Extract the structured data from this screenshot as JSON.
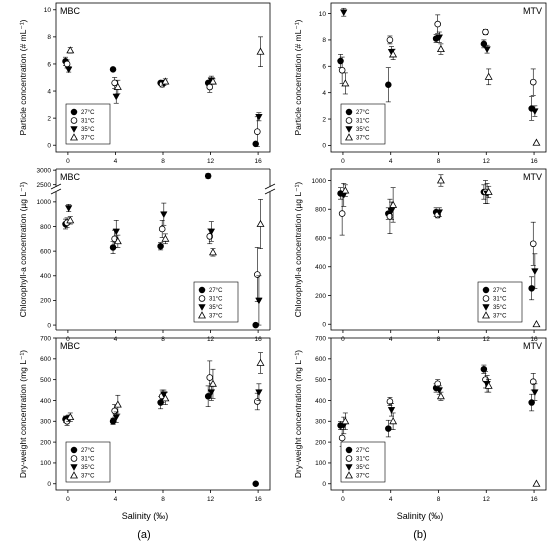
{
  "figure": {
    "xlabel": "Salinity (‰)",
    "sublabels": [
      "(a)",
      "(b)"
    ],
    "legend_entries": [
      "27°C",
      "31°C",
      "35°C",
      "37°C"
    ]
  },
  "chart_data": [
    {
      "type": "scatter",
      "panel": "a-top",
      "label": "MBC",
      "ylabel": "Particle concentration (# mL⁻¹)",
      "x_ticks": [
        0,
        4,
        8,
        12,
        16
      ],
      "y_ticks": [
        0,
        2,
        4,
        6,
        8,
        10
      ],
      "ylim": [
        -0.5,
        10.5
      ],
      "grid": false,
      "legend": "bottom-left",
      "series": [
        {
          "name": "27°C",
          "marker": "circle-filled",
          "points": [
            {
              "x": 0,
              "y": 6.2,
              "e": 0.3
            },
            {
              "x": 4,
              "y": 5.6,
              "e": 0
            },
            {
              "x": 8,
              "y": 4.6,
              "e": 0
            },
            {
              "x": 12,
              "y": 4.6,
              "e": 0
            },
            {
              "x": 16,
              "y": 0.1,
              "e": 0
            }
          ]
        },
        {
          "name": "31°C",
          "marker": "circle-open",
          "points": [
            {
              "x": 0,
              "y": 6.0,
              "e": 0.3
            },
            {
              "x": 4,
              "y": 4.6,
              "e": 0.4
            },
            {
              "x": 8,
              "y": 4.5,
              "e": 0.2
            },
            {
              "x": 12,
              "y": 4.3,
              "e": 0.4
            },
            {
              "x": 16,
              "y": 1.0,
              "e": 1.1
            }
          ]
        },
        {
          "name": "35°C",
          "marker": "tri-down-filled",
          "points": [
            {
              "x": 0,
              "y": 5.6,
              "e": 0.2
            },
            {
              "x": 4,
              "y": 3.6,
              "e": 0.5
            },
            {
              "x": 8,
              "y": 4.6,
              "e": 0.2
            },
            {
              "x": 12,
              "y": 4.8,
              "e": 0.3
            },
            {
              "x": 16,
              "y": 2.1,
              "e": 0.3
            }
          ]
        },
        {
          "name": "37°C",
          "marker": "tri-up-open",
          "points": [
            {
              "x": 0,
              "y": 7.0,
              "e": 0.2
            },
            {
              "x": 4,
              "y": 4.3,
              "e": 0.5
            },
            {
              "x": 8,
              "y": 4.7,
              "e": 0.2
            },
            {
              "x": 12,
              "y": 4.7,
              "e": 0.2
            },
            {
              "x": 16,
              "y": 6.9,
              "e": 1.1
            }
          ]
        }
      ]
    },
    {
      "type": "scatter",
      "panel": "a-mid",
      "label": "MBC",
      "ylabel": "Chlorophyll-a concentration (µg L⁻¹)",
      "x_ticks": [
        0,
        4,
        8,
        12,
        16
      ],
      "y_ticks_lower": [
        0,
        200,
        400,
        600,
        800,
        1000
      ],
      "y_ticks_upper": [
        2500,
        3000
      ],
      "ylim_lower": [
        -40,
        1080
      ],
      "ylim_upper": [
        2420,
        3040
      ],
      "broken_axis": true,
      "grid": false,
      "legend": "bottom-right",
      "series": [
        {
          "name": "27°C",
          "marker": "circle-filled",
          "points": [
            {
              "x": 0,
              "y": 820,
              "e": 40
            },
            {
              "x": 4,
              "y": 630,
              "e": 50
            },
            {
              "x": 8,
              "y": 640,
              "e": 30
            },
            {
              "x": 12,
              "y": 2800,
              "e": 80
            },
            {
              "x": 16,
              "y": 0,
              "e": 0
            }
          ]
        },
        {
          "name": "31°C",
          "marker": "circle-open",
          "points": [
            {
              "x": 0,
              "y": 830,
              "e": 40
            },
            {
              "x": 4,
              "y": 700,
              "e": 70
            },
            {
              "x": 8,
              "y": 780,
              "e": 70
            },
            {
              "x": 12,
              "y": 720,
              "e": 60
            },
            {
              "x": 16,
              "y": 410,
              "e": 220
            }
          ]
        },
        {
          "name": "35°C",
          "marker": "tri-down-filled",
          "points": [
            {
              "x": 0,
              "y": 950,
              "e": 30
            },
            {
              "x": 4,
              "y": 760,
              "e": 90
            },
            {
              "x": 8,
              "y": 900,
              "e": 90
            },
            {
              "x": 12,
              "y": 760,
              "e": 80
            },
            {
              "x": 16,
              "y": 200,
              "e": 200
            }
          ]
        },
        {
          "name": "37°C",
          "marker": "tri-up-open",
          "points": [
            {
              "x": 0,
              "y": 850,
              "e": 30
            },
            {
              "x": 4,
              "y": 680,
              "e": 50
            },
            {
              "x": 8,
              "y": 700,
              "e": 40
            },
            {
              "x": 12,
              "y": 590,
              "e": 30
            },
            {
              "x": 16,
              "y": 820,
              "e": 200
            }
          ]
        }
      ]
    },
    {
      "type": "scatter",
      "panel": "a-bot",
      "label": "MBC",
      "ylabel": "Dry-weight concentration (mg L⁻¹)",
      "x_ticks": [
        0,
        4,
        8,
        12,
        16
      ],
      "y_ticks": [
        0,
        100,
        200,
        300,
        400,
        500,
        600,
        700
      ],
      "ylim": [
        -30,
        700
      ],
      "grid": false,
      "legend": "bottom-left",
      "series": [
        {
          "name": "27°C",
          "marker": "circle-filled",
          "points": [
            {
              "x": 0,
              "y": 310,
              "e": 15
            },
            {
              "x": 4,
              "y": 300,
              "e": 15
            },
            {
              "x": 8,
              "y": 390,
              "e": 30
            },
            {
              "x": 12,
              "y": 420,
              "e": 50
            },
            {
              "x": 16,
              "y": 0,
              "e": 0
            }
          ]
        },
        {
          "name": "31°C",
          "marker": "circle-open",
          "points": [
            {
              "x": 0,
              "y": 300,
              "e": 20
            },
            {
              "x": 4,
              "y": 350,
              "e": 30
            },
            {
              "x": 8,
              "y": 420,
              "e": 30
            },
            {
              "x": 12,
              "y": 510,
              "e": 80
            },
            {
              "x": 16,
              "y": 395,
              "e": 40
            }
          ]
        },
        {
          "name": "35°C",
          "marker": "tri-down-filled",
          "points": [
            {
              "x": 0,
              "y": 315,
              "e": 15
            },
            {
              "x": 4,
              "y": 320,
              "e": 25
            },
            {
              "x": 8,
              "y": 430,
              "e": 20
            },
            {
              "x": 12,
              "y": 440,
              "e": 40
            },
            {
              "x": 16,
              "y": 440,
              "e": 40
            }
          ]
        },
        {
          "name": "37°C",
          "marker": "tri-up-open",
          "points": [
            {
              "x": 0,
              "y": 320,
              "e": 20
            },
            {
              "x": 4,
              "y": 380,
              "e": 45
            },
            {
              "x": 8,
              "y": 410,
              "e": 30
            },
            {
              "x": 12,
              "y": 480,
              "e": 70
            },
            {
              "x": 16,
              "y": 580,
              "e": 50
            }
          ]
        }
      ]
    },
    {
      "type": "scatter",
      "panel": "b-top",
      "label": "MTV",
      "ylabel": "Particle concentration (# mL⁻¹)",
      "x_ticks": [
        0,
        4,
        8,
        12,
        16
      ],
      "y_ticks": [
        0,
        2,
        4,
        6,
        8,
        10
      ],
      "ylim": [
        -0.5,
        10.8
      ],
      "grid": false,
      "legend": "bottom-left",
      "series": [
        {
          "name": "27°C",
          "marker": "circle-filled",
          "points": [
            {
              "x": 0,
              "y": 6.4,
              "e": 0.5
            },
            {
              "x": 4,
              "y": 4.6,
              "e": 1.3
            },
            {
              "x": 8,
              "y": 8.1,
              "e": 0.3
            },
            {
              "x": 12,
              "y": 7.7,
              "e": 0.3
            },
            {
              "x": 16,
              "y": 2.8,
              "e": 0.9
            }
          ]
        },
        {
          "name": "31°C",
          "marker": "circle-open",
          "points": [
            {
              "x": 0,
              "y": 5.7,
              "e": 1.0
            },
            {
              "x": 4,
              "y": 8.0,
              "e": 0.3
            },
            {
              "x": 8,
              "y": 9.2,
              "e": 0.7
            },
            {
              "x": 12,
              "y": 8.6,
              "e": 0.2
            },
            {
              "x": 16,
              "y": 4.8,
              "e": 1.0
            }
          ]
        },
        {
          "name": "35°C",
          "marker": "tri-down-filled",
          "points": [
            {
              "x": 0,
              "y": 10.1,
              "e": 0.3
            },
            {
              "x": 4,
              "y": 7.1,
              "e": 0.4
            },
            {
              "x": 8,
              "y": 8.2,
              "e": 0.4
            },
            {
              "x": 12,
              "y": 7.3,
              "e": 0.3
            },
            {
              "x": 16,
              "y": 2.6,
              "e": 0.4
            }
          ]
        },
        {
          "name": "37°C",
          "marker": "tri-up-open",
          "points": [
            {
              "x": 0,
              "y": 4.7,
              "e": 0.8
            },
            {
              "x": 4,
              "y": 6.9,
              "e": 0.4
            },
            {
              "x": 8,
              "y": 7.3,
              "e": 0.4
            },
            {
              "x": 12,
              "y": 5.2,
              "e": 0.6
            },
            {
              "x": 16,
              "y": 0.2,
              "e": 0
            }
          ]
        }
      ]
    },
    {
      "type": "scatter",
      "panel": "b-mid",
      "label": "MTV",
      "ylabel": "Chlorophyll-a concentration (µg L⁻¹)",
      "x_ticks": [
        0,
        4,
        8,
        12,
        16
      ],
      "y_ticks": [
        0,
        200,
        400,
        600,
        800,
        1000
      ],
      "ylim": [
        -40,
        1080
      ],
      "grid": false,
      "legend": "bottom-right",
      "series": [
        {
          "name": "27°C",
          "marker": "circle-filled",
          "points": [
            {
              "x": 0,
              "y": 910,
              "e": 40
            },
            {
              "x": 4,
              "y": 770,
              "e": 40
            },
            {
              "x": 8,
              "y": 780,
              "e": 30
            },
            {
              "x": 12,
              "y": 920,
              "e": 50
            },
            {
              "x": 16,
              "y": 250,
              "e": 80
            }
          ]
        },
        {
          "name": "31°C",
          "marker": "circle-open",
          "points": [
            {
              "x": 0,
              "y": 770,
              "e": 150
            },
            {
              "x": 4,
              "y": 750,
              "e": 120
            },
            {
              "x": 8,
              "y": 760,
              "e": 20
            },
            {
              "x": 12,
              "y": 920,
              "e": 80
            },
            {
              "x": 16,
              "y": 560,
              "e": 150
            }
          ]
        },
        {
          "name": "35°C",
          "marker": "tri-down-filled",
          "points": [
            {
              "x": 0,
              "y": 900,
              "e": 80
            },
            {
              "x": 4,
              "y": 790,
              "e": 60
            },
            {
              "x": 8,
              "y": 780,
              "e": 30
            },
            {
              "x": 12,
              "y": 910,
              "e": 70
            },
            {
              "x": 16,
              "y": 370,
              "e": 120
            }
          ]
        },
        {
          "name": "37°C",
          "marker": "tri-up-open",
          "points": [
            {
              "x": 0,
              "y": 930,
              "e": 40
            },
            {
              "x": 4,
              "y": 830,
              "e": 120
            },
            {
              "x": 8,
              "y": 1000,
              "e": 40
            },
            {
              "x": 12,
              "y": 920,
              "e": 40
            },
            {
              "x": 16,
              "y": 0,
              "e": 0
            }
          ]
        }
      ]
    },
    {
      "type": "scatter",
      "panel": "b-bot",
      "label": "MTV",
      "ylabel": "Dry-weight concentration (mg L⁻¹)",
      "x_ticks": [
        0,
        4,
        8,
        12,
        16
      ],
      "y_ticks": [
        0,
        100,
        200,
        300,
        400,
        500,
        600,
        700
      ],
      "ylim": [
        -30,
        700
      ],
      "grid": false,
      "legend": "bottom-left",
      "series": [
        {
          "name": "27°C",
          "marker": "circle-filled",
          "points": [
            {
              "x": 0,
              "y": 280,
              "e": 20
            },
            {
              "x": 4,
              "y": 265,
              "e": 40
            },
            {
              "x": 8,
              "y": 460,
              "e": 20
            },
            {
              "x": 12,
              "y": 550,
              "e": 20
            },
            {
              "x": 16,
              "y": 390,
              "e": 40
            }
          ]
        },
        {
          "name": "31°C",
          "marker": "circle-open",
          "points": [
            {
              "x": 0,
              "y": 220,
              "e": 40
            },
            {
              "x": 4,
              "y": 395,
              "e": 20
            },
            {
              "x": 8,
              "y": 480,
              "e": 20
            },
            {
              "x": 12,
              "y": 500,
              "e": 40
            },
            {
              "x": 16,
              "y": 490,
              "e": 40
            }
          ]
        },
        {
          "name": "35°C",
          "marker": "tri-down-filled",
          "points": [
            {
              "x": 0,
              "y": 280,
              "e": 40
            },
            {
              "x": 4,
              "y": 355,
              "e": 30
            },
            {
              "x": 8,
              "y": 450,
              "e": 20
            },
            {
              "x": 12,
              "y": 480,
              "e": 40
            },
            {
              "x": 16,
              "y": 440,
              "e": 40
            }
          ]
        },
        {
          "name": "37°C",
          "marker": "tri-up-open",
          "points": [
            {
              "x": 0,
              "y": 300,
              "e": 40
            },
            {
              "x": 4,
              "y": 300,
              "e": 40
            },
            {
              "x": 8,
              "y": 420,
              "e": 20
            },
            {
              "x": 12,
              "y": 470,
              "e": 30
            },
            {
              "x": 16,
              "y": 0,
              "e": 0
            }
          ]
        }
      ]
    }
  ]
}
